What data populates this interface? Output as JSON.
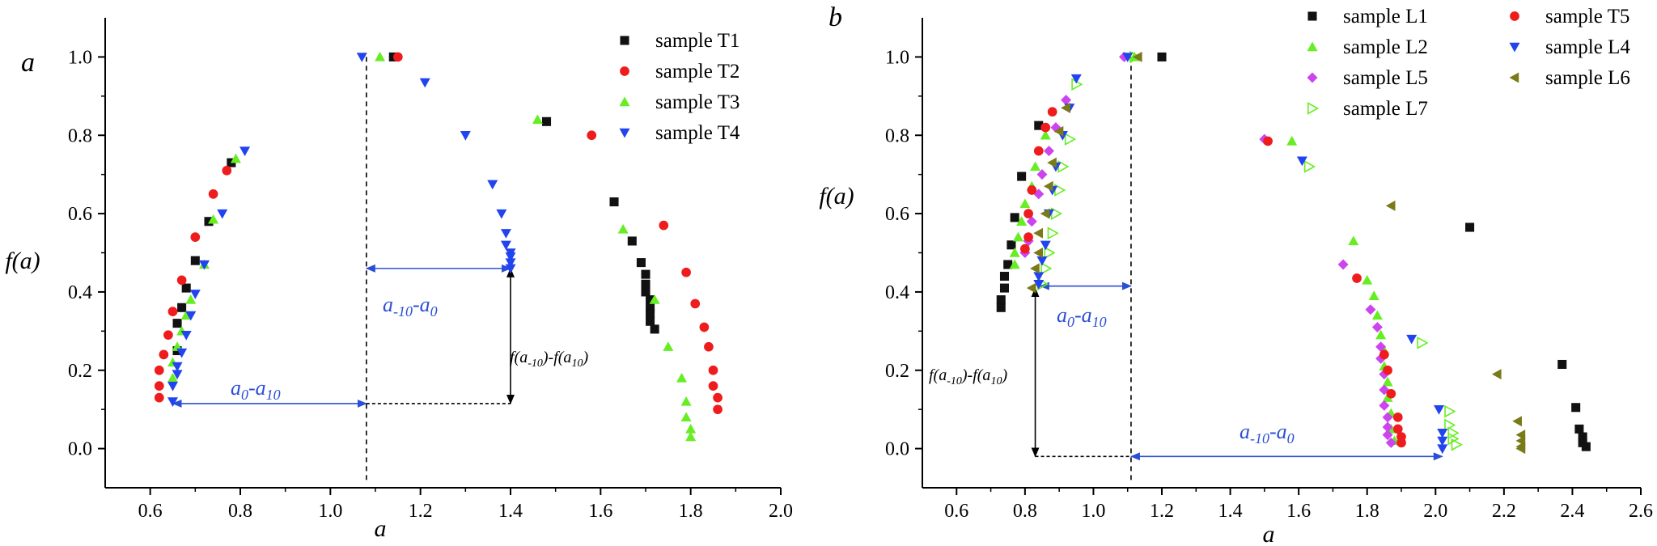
{
  "colors": {
    "black": "#111111",
    "red": "#ee1c1c",
    "green": "#66ee22",
    "blue": "#2244ee",
    "magenta": "#cc44ee",
    "olive": "#7a7a1a",
    "annotation_blue": "#2a4fd6"
  },
  "chart_data": [
    {
      "type": "scatter",
      "panel_label": "a",
      "xlabel": "a",
      "ylabel": "f(a)",
      "xlim": [
        0.5,
        2.0
      ],
      "ylim": [
        -0.1,
        1.1
      ],
      "xticks": [
        0.6,
        0.8,
        1.0,
        1.2,
        1.4,
        1.6,
        1.8,
        2.0
      ],
      "yticks": [
        0.0,
        0.2,
        0.4,
        0.6,
        0.8,
        1.0
      ],
      "legend_position": "top-right",
      "series": [
        {
          "name": "sample T1",
          "marker": "square",
          "color": "#111111",
          "points": [
            [
              0.66,
              0.25
            ],
            [
              0.66,
              0.32
            ],
            [
              0.67,
              0.36
            ],
            [
              0.68,
              0.41
            ],
            [
              0.7,
              0.48
            ],
            [
              0.73,
              0.58
            ],
            [
              0.78,
              0.73
            ],
            [
              1.14,
              1.0
            ],
            [
              1.48,
              0.835
            ],
            [
              1.63,
              0.63
            ],
            [
              1.67,
              0.53
            ],
            [
              1.69,
              0.475
            ],
            [
              1.7,
              0.445
            ],
            [
              1.7,
              0.42
            ],
            [
              1.7,
              0.4
            ],
            [
              1.71,
              0.38
            ],
            [
              1.71,
              0.36
            ],
            [
              1.71,
              0.345
            ],
            [
              1.71,
              0.325
            ],
            [
              1.72,
              0.305
            ]
          ]
        },
        {
          "name": "sample T2",
          "marker": "circle",
          "color": "#ee1c1c",
          "points": [
            [
              0.62,
              0.13
            ],
            [
              0.62,
              0.16
            ],
            [
              0.62,
              0.2
            ],
            [
              0.63,
              0.24
            ],
            [
              0.64,
              0.29
            ],
            [
              0.65,
              0.35
            ],
            [
              0.67,
              0.43
            ],
            [
              0.7,
              0.54
            ],
            [
              0.74,
              0.65
            ],
            [
              0.77,
              0.71
            ],
            [
              1.15,
              1.0
            ],
            [
              1.58,
              0.8
            ],
            [
              1.74,
              0.57
            ],
            [
              1.79,
              0.45
            ],
            [
              1.81,
              0.37
            ],
            [
              1.83,
              0.31
            ],
            [
              1.84,
              0.26
            ],
            [
              1.85,
              0.2
            ],
            [
              1.85,
              0.16
            ],
            [
              1.86,
              0.13
            ],
            [
              1.86,
              0.1
            ]
          ]
        },
        {
          "name": "sample T3",
          "marker": "triangle-up",
          "color": "#66ee22",
          "points": [
            [
              0.65,
              0.18
            ],
            [
              0.65,
              0.22
            ],
            [
              0.66,
              0.26
            ],
            [
              0.67,
              0.3
            ],
            [
              0.68,
              0.34
            ],
            [
              0.69,
              0.38
            ],
            [
              0.72,
              0.47
            ],
            [
              0.74,
              0.585
            ],
            [
              0.79,
              0.74
            ],
            [
              1.11,
              1.0
            ],
            [
              1.46,
              0.84
            ],
            [
              1.65,
              0.56
            ],
            [
              1.72,
              0.38
            ],
            [
              1.75,
              0.26
            ],
            [
              1.78,
              0.18
            ],
            [
              1.79,
              0.12
            ],
            [
              1.79,
              0.08
            ],
            [
              1.8,
              0.05
            ],
            [
              1.8,
              0.03
            ]
          ]
        },
        {
          "name": "sample T4",
          "marker": "triangle-down",
          "color": "#2244ee",
          "points": [
            [
              0.65,
              0.12
            ],
            [
              0.65,
              0.16
            ],
            [
              0.66,
              0.19
            ],
            [
              0.66,
              0.21
            ],
            [
              0.67,
              0.245
            ],
            [
              0.68,
              0.29
            ],
            [
              0.69,
              0.34
            ],
            [
              0.7,
              0.395
            ],
            [
              0.72,
              0.47
            ],
            [
              0.76,
              0.6
            ],
            [
              0.81,
              0.76
            ],
            [
              1.07,
              1.0
            ],
            [
              1.21,
              0.935
            ],
            [
              1.3,
              0.8
            ],
            [
              1.36,
              0.675
            ],
            [
              1.38,
              0.6
            ],
            [
              1.39,
              0.55
            ],
            [
              1.39,
              0.52
            ],
            [
              1.4,
              0.5
            ],
            [
              1.4,
              0.49
            ],
            [
              1.4,
              0.475
            ],
            [
              1.4,
              0.46
            ]
          ]
        }
      ],
      "annotations": [
        {
          "label_main": "a",
          "label_sub": "0",
          "label_main2": "-a",
          "label_sub2": "10"
        },
        {
          "label_main": "a",
          "label_sub": "-10",
          "label_main2": "-a",
          "label_sub2": "0"
        },
        {
          "label_main": "f(a",
          "label_sub": "-10",
          "label_main2": ")-f(a",
          "label_sub2": "10",
          "label_tail": ")"
        }
      ]
    },
    {
      "type": "scatter",
      "panel_label": "b",
      "xlabel": "a",
      "ylabel": "f(a)",
      "xlim": [
        0.5,
        2.6
      ],
      "ylim": [
        -0.1,
        1.1
      ],
      "xticks": [
        0.6,
        0.8,
        1.0,
        1.2,
        1.4,
        1.6,
        1.8,
        2.0,
        2.2,
        2.4,
        2.6
      ],
      "yticks": [
        0.0,
        0.2,
        0.4,
        0.6,
        0.8,
        1.0
      ],
      "legend_position": "top-right",
      "series": [
        {
          "name": "sample L1",
          "marker": "square",
          "color": "#111111",
          "points": [
            [
              0.73,
              0.36
            ],
            [
              0.73,
              0.38
            ],
            [
              0.74,
              0.41
            ],
            [
              0.74,
              0.44
            ],
            [
              0.75,
              0.47
            ],
            [
              0.76,
              0.52
            ],
            [
              0.77,
              0.59
            ],
            [
              0.79,
              0.695
            ],
            [
              0.84,
              0.825
            ],
            [
              1.2,
              1.0
            ],
            [
              2.1,
              0.565
            ],
            [
              2.37,
              0.215
            ],
            [
              2.41,
              0.105
            ],
            [
              2.42,
              0.05
            ],
            [
              2.43,
              0.03
            ],
            [
              2.43,
              0.015
            ],
            [
              2.44,
              0.005
            ]
          ]
        },
        {
          "name": "sample L2",
          "marker": "triangle-up",
          "color": "#66ee22",
          "points": [
            [
              0.77,
              0.47
            ],
            [
              0.77,
              0.5
            ],
            [
              0.78,
              0.54
            ],
            [
              0.79,
              0.58
            ],
            [
              0.8,
              0.625
            ],
            [
              0.82,
              0.67
            ],
            [
              0.83,
              0.72
            ],
            [
              0.86,
              0.8
            ],
            [
              1.12,
              1.0
            ],
            [
              1.58,
              0.785
            ],
            [
              1.76,
              0.53
            ],
            [
              1.8,
              0.43
            ],
            [
              1.82,
              0.39
            ],
            [
              1.83,
              0.34
            ],
            [
              1.84,
              0.29
            ],
            [
              1.85,
              0.25
            ],
            [
              1.85,
              0.21
            ],
            [
              1.86,
              0.17
            ],
            [
              1.86,
              0.13
            ],
            [
              1.87,
              0.09
            ],
            [
              1.87,
              0.05
            ],
            [
              1.88,
              0.02
            ]
          ]
        },
        {
          "name": "sample L5",
          "marker": "diamond",
          "color": "#cc44ee",
          "points": [
            [
              0.8,
              0.5
            ],
            [
              0.81,
              0.53
            ],
            [
              0.82,
              0.58
            ],
            [
              0.84,
              0.65
            ],
            [
              0.85,
              0.7
            ],
            [
              0.87,
              0.76
            ],
            [
              0.89,
              0.82
            ],
            [
              0.92,
              0.89
            ],
            [
              1.09,
              1.0
            ],
            [
              1.5,
              0.79
            ],
            [
              1.73,
              0.47
            ],
            [
              1.81,
              0.355
            ],
            [
              1.83,
              0.31
            ],
            [
              1.84,
              0.26
            ],
            [
              1.84,
              0.23
            ],
            [
              1.85,
              0.19
            ],
            [
              1.85,
              0.15
            ],
            [
              1.85,
              0.11
            ],
            [
              1.86,
              0.08
            ],
            [
              1.86,
              0.055
            ],
            [
              1.86,
              0.035
            ],
            [
              1.87,
              0.015
            ]
          ]
        },
        {
          "name": "sample L7",
          "marker": "triangle-right-open",
          "color": "#66ee22",
          "points": [
            [
              0.85,
              0.42
            ],
            [
              0.86,
              0.46
            ],
            [
              0.87,
              0.5
            ],
            [
              0.88,
              0.55
            ],
            [
              0.89,
              0.6
            ],
            [
              0.9,
              0.66
            ],
            [
              0.91,
              0.72
            ],
            [
              0.93,
              0.79
            ],
            [
              0.95,
              0.93
            ],
            [
              1.12,
              1.0
            ],
            [
              1.63,
              0.72
            ],
            [
              1.96,
              0.27
            ],
            [
              2.04,
              0.095
            ],
            [
              2.04,
              0.06
            ],
            [
              2.05,
              0.04
            ],
            [
              2.05,
              0.025
            ],
            [
              2.06,
              0.01
            ]
          ]
        },
        {
          "name": "sample T5",
          "marker": "circle",
          "color": "#ee1c1c",
          "points": [
            [
              0.8,
              0.51
            ],
            [
              0.81,
              0.54
            ],
            [
              0.81,
              0.6
            ],
            [
              0.82,
              0.66
            ],
            [
              0.84,
              0.76
            ],
            [
              0.86,
              0.82
            ],
            [
              0.88,
              0.86
            ],
            [
              1.51,
              0.785
            ],
            [
              1.77,
              0.435
            ],
            [
              1.85,
              0.24
            ],
            [
              1.86,
              0.2
            ],
            [
              1.87,
              0.14
            ],
            [
              1.89,
              0.08
            ],
            [
              1.89,
              0.05
            ],
            [
              1.9,
              0.03
            ],
            [
              1.9,
              0.015
            ]
          ]
        },
        {
          "name": "sample L4",
          "marker": "triangle-down",
          "color": "#2244ee",
          "points": [
            [
              0.84,
              0.42
            ],
            [
              0.84,
              0.44
            ],
            [
              0.85,
              0.48
            ],
            [
              0.86,
              0.52
            ],
            [
              0.87,
              0.6
            ],
            [
              0.88,
              0.66
            ],
            [
              0.89,
              0.72
            ],
            [
              0.91,
              0.8
            ],
            [
              0.93,
              0.87
            ],
            [
              0.95,
              0.945
            ],
            [
              1.1,
              1.0
            ],
            [
              1.61,
              0.735
            ],
            [
              1.93,
              0.28
            ],
            [
              2.01,
              0.1
            ],
            [
              2.02,
              0.04
            ],
            [
              2.02,
              0.02
            ],
            [
              2.02,
              0.0
            ]
          ]
        },
        {
          "name": "sample L6",
          "marker": "triangle-left",
          "color": "#7a7a1a",
          "points": [
            [
              0.82,
              0.41
            ],
            [
              0.83,
              0.46
            ],
            [
              0.84,
              0.5
            ],
            [
              0.84,
              0.55
            ],
            [
              0.86,
              0.6
            ],
            [
              0.87,
              0.67
            ],
            [
              0.88,
              0.73
            ],
            [
              0.9,
              0.81
            ],
            [
              0.92,
              0.87
            ],
            [
              1.13,
              1.0
            ],
            [
              1.87,
              0.62
            ],
            [
              2.18,
              0.19
            ],
            [
              2.24,
              0.07
            ],
            [
              2.25,
              0.035
            ],
            [
              2.25,
              0.02
            ],
            [
              2.25,
              0.005
            ],
            [
              2.25,
              0.0
            ]
          ]
        }
      ],
      "annotations": [
        {
          "label_main": "a",
          "label_sub": "0",
          "label_main2": "-a",
          "label_sub2": "10"
        },
        {
          "label_main": "a",
          "label_sub": "-10",
          "label_main2": "-a",
          "label_sub2": "0"
        },
        {
          "label_main": "f(a",
          "label_sub": "-10",
          "label_main2": ")-f(a",
          "label_sub2": "10",
          "label_tail": ")"
        }
      ]
    }
  ]
}
